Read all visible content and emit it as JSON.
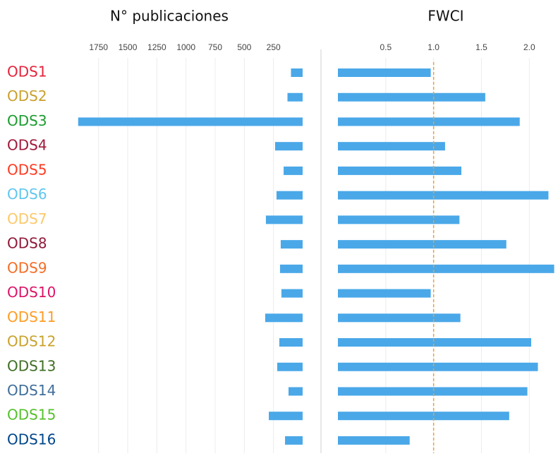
{
  "chart_data": [
    {
      "type": "bar",
      "orientation": "horizontal",
      "title": "N° publicaciones",
      "categories": [
        "ODS1",
        "ODS2",
        "ODS3",
        "ODS4",
        "ODS5",
        "ODS6",
        "ODS7",
        "ODS8",
        "ODS9",
        "ODS10",
        "ODS11",
        "ODS12",
        "ODS13",
        "ODS14",
        "ODS15",
        "ODS16"
      ],
      "category_colors": [
        "#e5243b",
        "#c9a02c",
        "#1a9c2e",
        "#a0183a",
        "#ff3a21",
        "#5fc6ee",
        "#fcc96b",
        "#8f1838",
        "#f36d25",
        "#dd1367",
        "#fd9d24",
        "#c9a22c",
        "#3f6e24",
        "#3f6e9a",
        "#56c02b",
        "#00468a"
      ],
      "values": [
        100,
        130,
        1925,
        236,
        163,
        224,
        315,
        188,
        194,
        182,
        321,
        200,
        218,
        121,
        290,
        151
      ],
      "color": "#4aa8e8",
      "xlim": [
        0,
        1960
      ],
      "x_reversed": true,
      "xticks": [
        1750,
        1500,
        1250,
        1000,
        750,
        500,
        250
      ],
      "grid": true
    },
    {
      "type": "bar",
      "orientation": "horizontal",
      "title": "FWCI",
      "values": [
        0.97,
        1.54,
        1.9,
        1.12,
        1.29,
        2.2,
        1.27,
        1.76,
        2.26,
        0.97,
        1.28,
        2.02,
        2.09,
        1.98,
        1.79,
        0.75
      ],
      "color": "#4aa8e8",
      "xlim": [
        0,
        2.3
      ],
      "xticks": [
        0.5,
        {
          "value": 1,
          "label": "1.0"
        },
        1.5,
        {
          "value": 2,
          "label": "2.0"
        }
      ],
      "grid": true,
      "reference_line": 1,
      "reference_color": "#f0a030"
    }
  ]
}
